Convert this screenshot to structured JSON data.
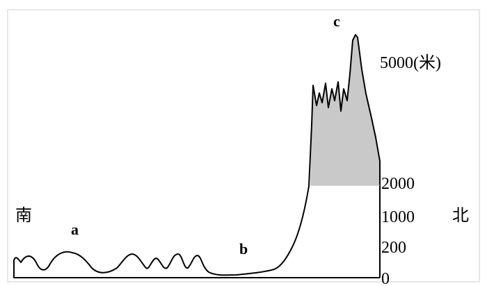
{
  "labels": {
    "south": "南",
    "north": "北",
    "a": "a",
    "b": "b",
    "c": "c"
  },
  "elevation_ticks": [
    "5000(米)",
    "2000",
    "1000",
    "200",
    "0"
  ],
  "colors": {
    "line": "#000000",
    "shaded_zone": "#c9c9c9",
    "frame": "#cfcfcf",
    "background": "#ffffff"
  }
}
